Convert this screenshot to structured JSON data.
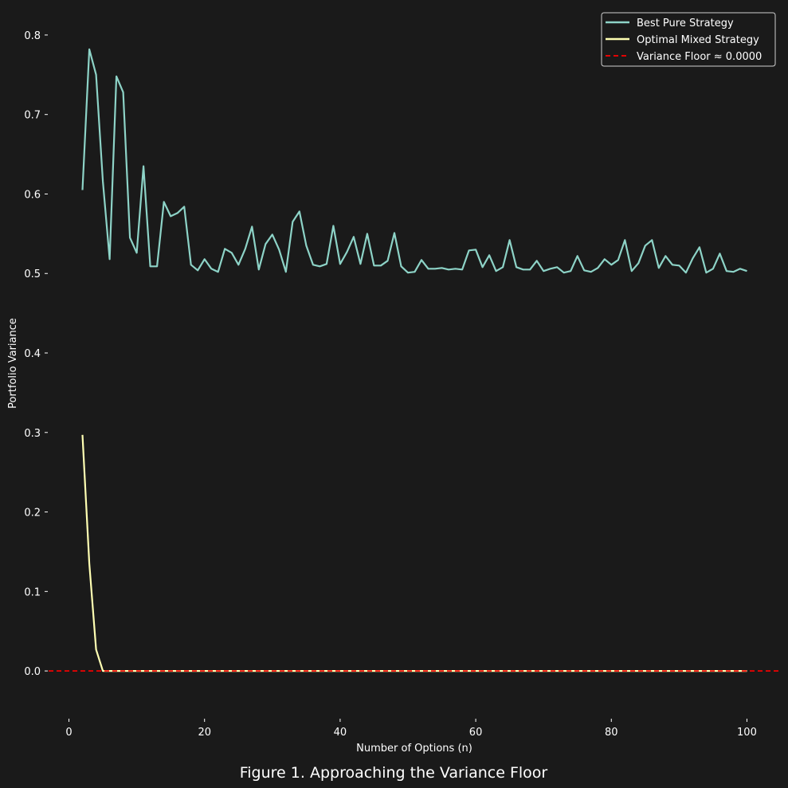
{
  "caption": "Figure 1. Approaching the Variance Floor",
  "chart_data": {
    "type": "line",
    "xlabel": "Number of Options (n)",
    "ylabel": "Portfolio Variance",
    "xlim": [
      -3,
      105
    ],
    "ylim": [
      -0.04,
      0.83
    ],
    "xticks": [
      0,
      20,
      40,
      60,
      80,
      100
    ],
    "yticks": [
      0.0,
      0.1,
      0.2,
      0.3,
      0.4,
      0.5,
      0.6,
      0.7,
      0.8
    ],
    "ytick_labels": [
      "0.0",
      "0.1",
      "0.2",
      "0.3",
      "0.4",
      "0.5",
      "0.6",
      "0.7",
      "0.8"
    ],
    "grid": false,
    "legend_position": "top-right",
    "colors": {
      "background": "#1a1a1a",
      "best_pure": "#8dd3c7",
      "optimal_mixed": "#ffffb3",
      "floor": "#ff0000",
      "text": "#ffffff"
    },
    "series": [
      {
        "name": "Best Pure Strategy",
        "x": [
          2,
          3,
          4,
          5,
          6,
          7,
          8,
          9,
          10,
          11,
          12,
          13,
          14,
          15,
          16,
          17,
          18,
          19,
          20,
          21,
          22,
          23,
          24,
          25,
          26,
          27,
          28,
          29,
          30,
          31,
          32,
          33,
          34,
          35,
          36,
          37,
          38,
          39,
          40,
          41,
          42,
          43,
          44,
          45,
          46,
          47,
          48,
          49,
          50,
          51,
          52,
          53,
          54,
          55,
          56,
          57,
          58,
          59,
          60,
          61,
          62,
          63,
          64,
          65,
          66,
          67,
          68,
          69,
          70,
          71,
          72,
          73,
          74,
          75,
          76,
          77,
          78,
          79,
          80,
          81,
          82,
          83,
          84,
          85,
          86,
          87,
          88,
          89,
          90,
          91,
          92,
          93,
          94,
          95,
          96,
          97,
          98,
          99,
          100
        ],
        "values": [
          0.605,
          0.782,
          0.75,
          0.616,
          0.518,
          0.748,
          0.728,
          0.545,
          0.526,
          0.635,
          0.509,
          0.509,
          0.59,
          0.572,
          0.576,
          0.584,
          0.511,
          0.504,
          0.518,
          0.506,
          0.502,
          0.531,
          0.526,
          0.511,
          0.531,
          0.559,
          0.505,
          0.537,
          0.549,
          0.53,
          0.502,
          0.565,
          0.578,
          0.535,
          0.511,
          0.509,
          0.512,
          0.56,
          0.512,
          0.527,
          0.546,
          0.512,
          0.55,
          0.51,
          0.51,
          0.516,
          0.551,
          0.509,
          0.501,
          0.502,
          0.517,
          0.506,
          0.506,
          0.507,
          0.505,
          0.506,
          0.505,
          0.529,
          0.53,
          0.508,
          0.523,
          0.503,
          0.508,
          0.542,
          0.508,
          0.505,
          0.505,
          0.516,
          0.503,
          0.506,
          0.508,
          0.501,
          0.503,
          0.522,
          0.504,
          0.502,
          0.507,
          0.518,
          0.511,
          0.517,
          0.542,
          0.503,
          0.513,
          0.535,
          0.542,
          0.507,
          0.522,
          0.511,
          0.51,
          0.501,
          0.519,
          0.533,
          0.501,
          0.506,
          0.525,
          0.503,
          0.502,
          0.506,
          0.503
        ]
      },
      {
        "name": "Optimal Mixed Strategy",
        "x": [
          2,
          3,
          4,
          5,
          6,
          7,
          8,
          9,
          10,
          11,
          12,
          13,
          14,
          15,
          16,
          17,
          18,
          19,
          20,
          21,
          22,
          23,
          24,
          25,
          26,
          27,
          28,
          29,
          30,
          31,
          32,
          33,
          34,
          35,
          36,
          37,
          38,
          39,
          40,
          41,
          42,
          43,
          44,
          45,
          46,
          47,
          48,
          49,
          50,
          51,
          52,
          53,
          54,
          55,
          56,
          57,
          58,
          59,
          60,
          61,
          62,
          63,
          64,
          65,
          66,
          67,
          68,
          69,
          70,
          71,
          72,
          73,
          74,
          75,
          76,
          77,
          78,
          79,
          80,
          81,
          82,
          83,
          84,
          85,
          86,
          87,
          88,
          89,
          90,
          91,
          92,
          93,
          94,
          95,
          96,
          97,
          98,
          99,
          100
        ],
        "values": [
          0.297,
          0.135,
          0.027,
          0.0,
          0,
          0,
          0,
          0,
          0,
          0,
          0,
          0,
          0,
          0,
          0,
          0,
          0,
          0,
          0,
          0,
          0,
          0,
          0,
          0,
          0,
          0,
          0,
          0,
          0,
          0,
          0,
          0,
          0,
          0,
          0,
          0,
          0,
          0,
          0,
          0,
          0,
          0,
          0,
          0,
          0,
          0,
          0,
          0,
          0,
          0,
          0,
          0,
          0,
          0,
          0,
          0,
          0,
          0,
          0,
          0,
          0,
          0,
          0,
          0,
          0,
          0,
          0,
          0,
          0,
          0,
          0,
          0,
          0,
          0,
          0,
          0,
          0,
          0,
          0,
          0,
          0,
          0,
          0,
          0,
          0,
          0,
          0,
          0,
          0,
          0,
          0,
          0,
          0,
          0,
          0,
          0,
          0,
          0,
          0
        ]
      },
      {
        "name": "Variance Floor ≈ 0.0000",
        "type": "hline",
        "y": 0.0,
        "style": "dashed"
      }
    ]
  }
}
